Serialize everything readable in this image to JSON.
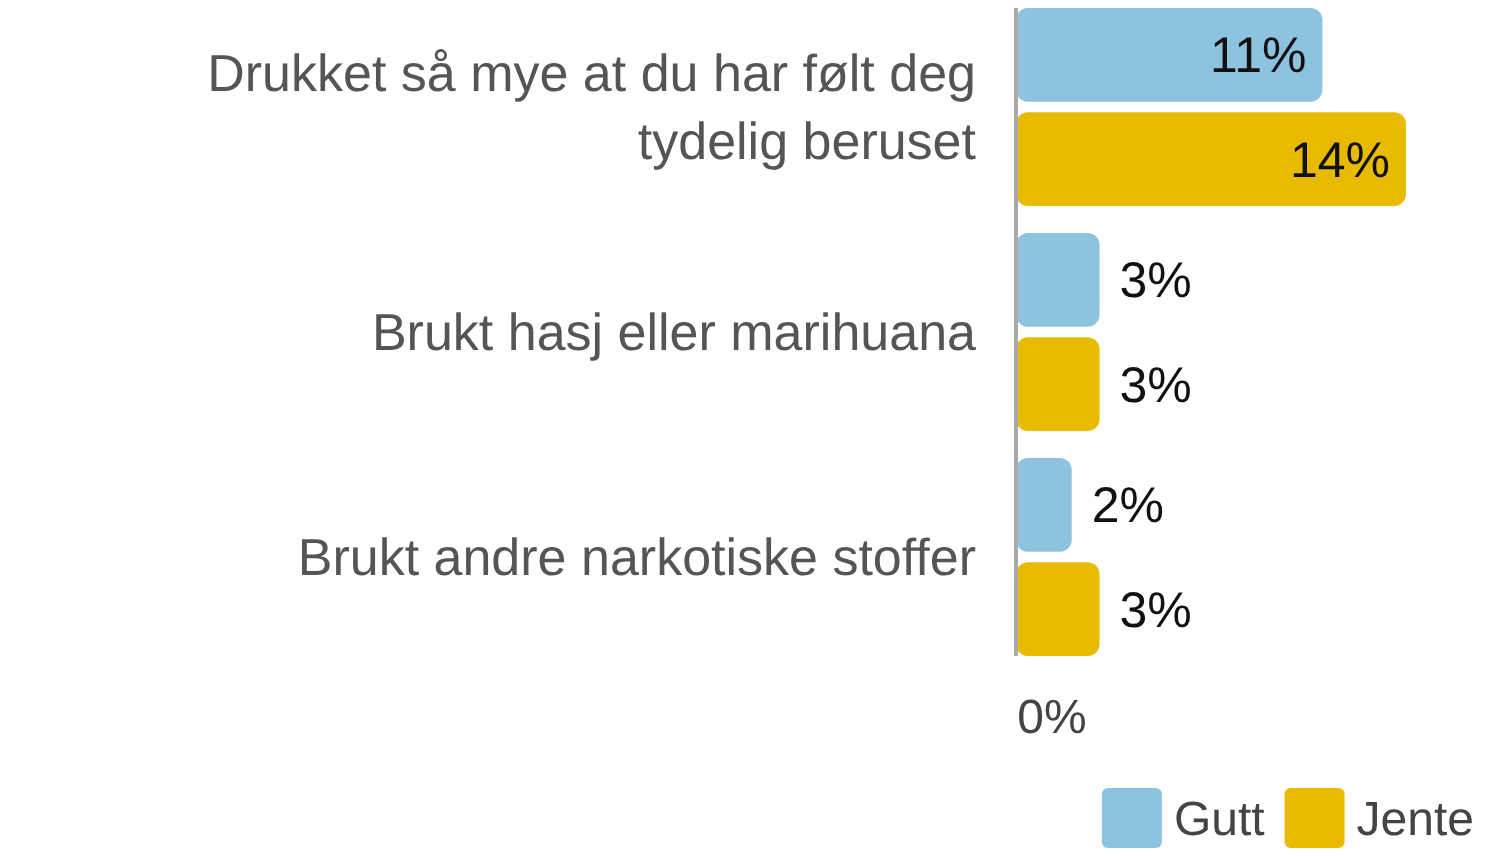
{
  "chart_data": {
    "type": "bar",
    "orientation": "horizontal",
    "categories": [
      "Drukket så mye at du har følt deg tydelig beruset",
      "Brukt hasj eller marihuana",
      "Brukt andre narkotiske stoffer"
    ],
    "series": [
      {
        "name": "Gutt",
        "color": "#8ec3df",
        "values": [
          11,
          3,
          2
        ],
        "value_labels": [
          "11%",
          "3%",
          "2%"
        ]
      },
      {
        "name": "Jente",
        "color": "#e8bb00",
        "values": [
          14,
          3,
          3
        ],
        "value_labels": [
          "14%",
          "3%",
          "3%"
        ]
      }
    ],
    "annotations": [
      "0%"
    ],
    "legend": "bottom right"
  }
}
